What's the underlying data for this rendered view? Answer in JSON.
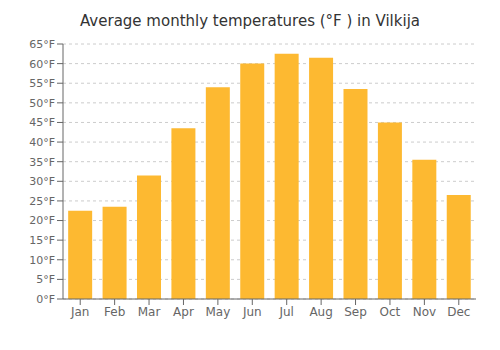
{
  "chart_data": {
    "type": "bar",
    "title": "Average monthly temperatures (°F ) in Vilkija",
    "categories": [
      "Jan",
      "Feb",
      "Mar",
      "Apr",
      "May",
      "Jun",
      "Jul",
      "Aug",
      "Sep",
      "Oct",
      "Nov",
      "Dec"
    ],
    "values": [
      22.5,
      23.5,
      31.5,
      43.5,
      54.0,
      60.0,
      62.5,
      61.5,
      53.5,
      45.0,
      35.5,
      26.5
    ],
    "color": "#FDB931",
    "ylim": [
      0,
      65
    ],
    "yticks": [
      {
        "value": 0,
        "label": "0°F"
      },
      {
        "value": 5,
        "label": "5°F"
      },
      {
        "value": 10,
        "label": "10°F"
      },
      {
        "value": 15,
        "label": "15°F"
      },
      {
        "value": 20,
        "label": "20°F"
      },
      {
        "value": 25,
        "label": "25°F"
      },
      {
        "value": 30,
        "label": "30°F"
      },
      {
        "value": 35,
        "label": "35°F"
      },
      {
        "value": 40,
        "label": "40°F"
      },
      {
        "value": 45,
        "label": "45°F"
      },
      {
        "value": 50,
        "label": "50°F"
      },
      {
        "value": 55,
        "label": "55°F"
      },
      {
        "value": 60,
        "label": "60°F"
      },
      {
        "value": 65,
        "label": "65°F"
      }
    ],
    "grid": true
  }
}
